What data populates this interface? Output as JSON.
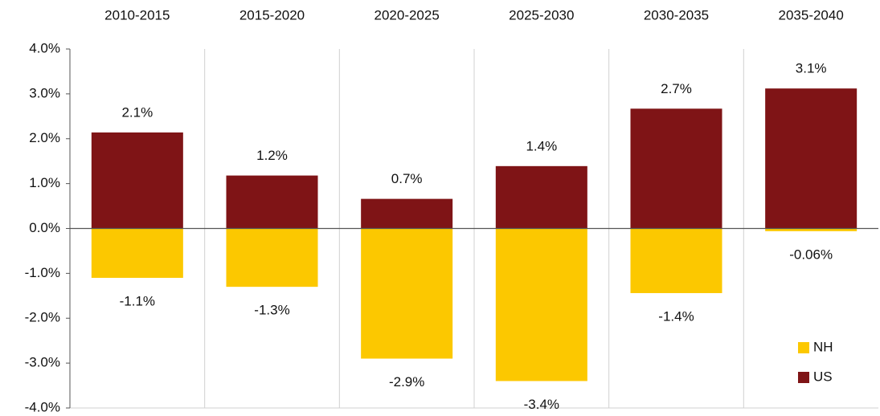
{
  "chart_data": {
    "type": "bar",
    "categories": [
      "2010-2015",
      "2015-2020",
      "2020-2025",
      "2025-2030",
      "2030-2035",
      "2035-2040"
    ],
    "series": [
      {
        "name": "NH",
        "color": "#fcc800",
        "values": [
          -1.1,
          -1.3,
          -2.9,
          -3.4,
          -1.44,
          -0.06
        ],
        "value_labels": [
          "-1.1%",
          "-1.3%",
          "-2.9%",
          "-3.4%",
          "-1.4%",
          "-0.06%"
        ]
      },
      {
        "name": "US",
        "color": "#7f1416",
        "values": [
          2.14,
          1.18,
          0.66,
          1.39,
          2.67,
          3.12
        ],
        "value_labels": [
          "2.1%",
          "1.2%",
          "0.7%",
          "1.4%",
          "2.7%",
          "3.1%"
        ]
      }
    ],
    "ylim": [
      -4,
      4
    ],
    "yticks": [
      {
        "value": -4,
        "label": "-4.0%"
      },
      {
        "value": -3,
        "label": "-3.0%"
      },
      {
        "value": -2,
        "label": "-2.0%"
      },
      {
        "value": -1,
        "label": "-1.0%"
      },
      {
        "value": 0,
        "label": "0.0%"
      },
      {
        "value": 1,
        "label": "1.0%"
      },
      {
        "value": 2,
        "label": "2.0%"
      },
      {
        "value": 3,
        "label": "3.0%"
      },
      {
        "value": 4,
        "label": "4.0%"
      }
    ],
    "legend": "lower right"
  }
}
